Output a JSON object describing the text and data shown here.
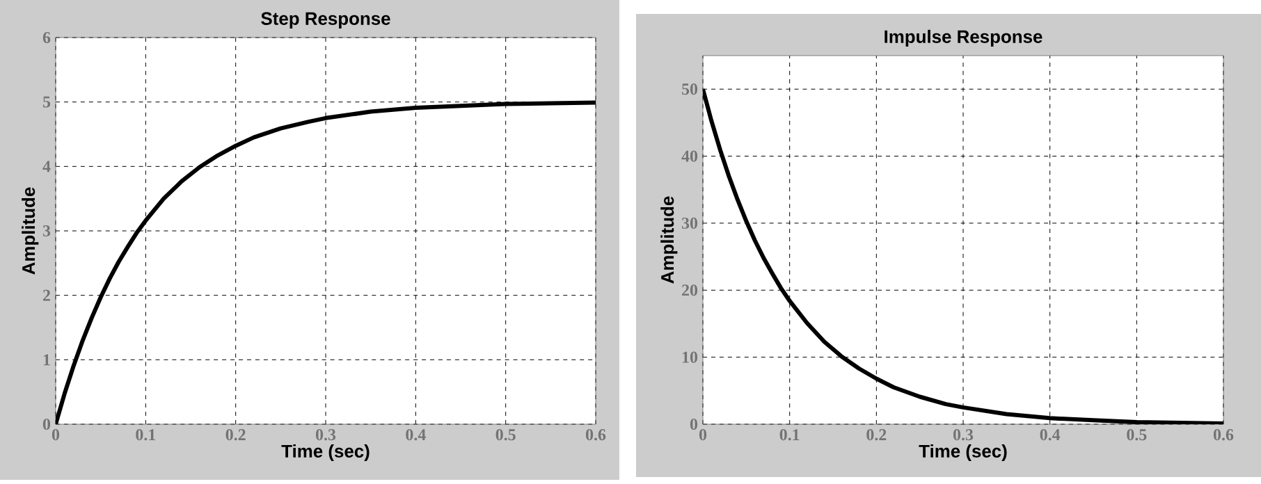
{
  "chart_data": [
    {
      "type": "line",
      "title": "Step Response",
      "xlabel": "Time (sec)",
      "ylabel": "Amplitude",
      "xlim": [
        0,
        0.6
      ],
      "ylim": [
        0,
        6
      ],
      "xticks": [
        0,
        0.1,
        0.2,
        0.3,
        0.4,
        0.5,
        0.6
      ],
      "yticks": [
        0,
        1,
        2,
        3,
        4,
        5,
        6
      ],
      "grid": true,
      "series": [
        {
          "color": "#000000",
          "x": [
            0,
            0.01,
            0.02,
            0.03,
            0.04,
            0.05,
            0.06,
            0.07,
            0.08,
            0.09,
            0.1,
            0.12,
            0.14,
            0.16,
            0.18,
            0.2,
            0.22,
            0.25,
            0.28,
            0.3,
            0.35,
            0.4,
            0.45,
            0.5,
            0.55,
            0.6
          ],
          "values": [
            0,
            0.48,
            0.91,
            1.3,
            1.65,
            1.97,
            2.26,
            2.52,
            2.75,
            2.97,
            3.16,
            3.5,
            3.77,
            3.99,
            4.17,
            4.32,
            4.45,
            4.59,
            4.69,
            4.75,
            4.85,
            4.91,
            4.94,
            4.97,
            4.98,
            4.99
          ]
        }
      ]
    },
    {
      "type": "line",
      "title": "Impulse Response",
      "xlabel": "Time (sec)",
      "ylabel": "Amplitude",
      "xlim": [
        0,
        0.6
      ],
      "ylim": [
        0,
        55
      ],
      "xticks": [
        0,
        0.1,
        0.2,
        0.3,
        0.4,
        0.5,
        0.6
      ],
      "yticks": [
        0,
        10,
        20,
        30,
        40,
        50
      ],
      "grid": true,
      "series": [
        {
          "color": "#000000",
          "x": [
            0,
            0.01,
            0.02,
            0.03,
            0.04,
            0.05,
            0.06,
            0.07,
            0.08,
            0.09,
            0.1,
            0.12,
            0.14,
            0.16,
            0.18,
            0.2,
            0.22,
            0.25,
            0.28,
            0.3,
            0.35,
            0.4,
            0.45,
            0.5,
            0.55,
            0.6
          ],
          "values": [
            50,
            45.2,
            40.9,
            37,
            33.5,
            30.3,
            27.4,
            24.8,
            22.5,
            20.3,
            18.4,
            15.1,
            12.3,
            10.1,
            8.3,
            6.8,
            5.5,
            4.1,
            3.0,
            2.5,
            1.5,
            0.9,
            0.6,
            0.3,
            0.2,
            0.1
          ]
        }
      ]
    }
  ]
}
